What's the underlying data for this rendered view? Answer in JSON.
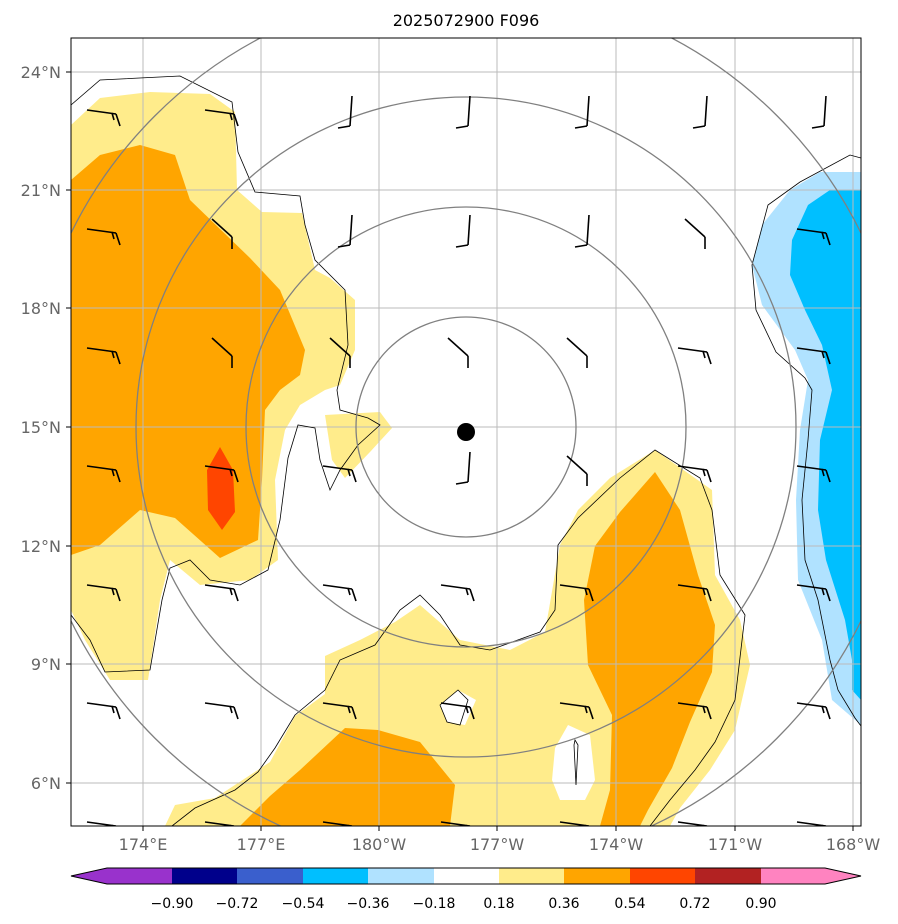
{
  "title": "2025072900 F096",
  "map": {
    "lat_labels": [
      "24°N",
      "21°N",
      "18°N",
      "15°N",
      "12°N",
      "9°N",
      "6°N"
    ],
    "lat_values": [
      24,
      21,
      18,
      15,
      12,
      9,
      6
    ],
    "lon_labels": [
      "174°E",
      "177°E",
      "180°W",
      "177°W",
      "174°W",
      "171°W",
      "168°W"
    ],
    "lon_values": [
      174,
      177,
      180,
      183,
      186,
      189,
      192
    ],
    "extent": {
      "lon_min": 172.2,
      "lon_max": 192.1,
      "lat_min": 4.9,
      "lat_max": 24.8
    },
    "center_marker": {
      "lon": 182.2,
      "lat": 14.9
    },
    "range_rings": [
      "ring-1",
      "ring-2",
      "ring-3",
      "ring-4"
    ],
    "grid": true,
    "wind_barbs": "shown"
  },
  "colorbar": {
    "labels": [
      "−0.90",
      "−0.72",
      "−0.54",
      "−0.36",
      "−0.18",
      "0.18",
      "0.36",
      "0.54",
      "0.72",
      "0.90"
    ],
    "values": [
      -0.9,
      -0.72,
      -0.54,
      -0.36,
      -0.18,
      0.18,
      0.36,
      0.54,
      0.72,
      0.9
    ],
    "colors": [
      "#9932cc",
      "#00008b",
      "#3a5fcd",
      "#00bfff",
      "#b0e2ff",
      "#ffffff",
      "#ffec8b",
      "#ffa500",
      "#ff4500",
      "#b22222",
      "#ff83c0"
    ],
    "extend": "both"
  },
  "colors": {
    "light_yellow": "#ffec8b",
    "orange": "#ffa500",
    "red_orange": "#ff4500",
    "light_blue": "#b0e2ff",
    "deep_sky_blue": "#00bfff",
    "ring": "#808080",
    "grid": "#bbbbbb"
  }
}
